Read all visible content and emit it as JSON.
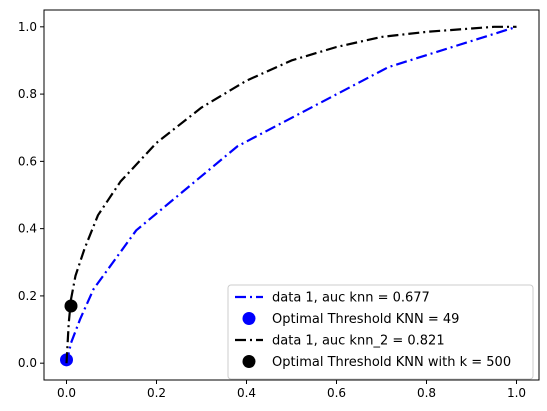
{
  "chart_data": {
    "type": "line",
    "title": "",
    "xlabel": "",
    "ylabel": "",
    "xlim": [
      -0.05,
      1.05
    ],
    "ylim": [
      -0.05,
      1.05
    ],
    "x_ticks": [
      0.0,
      0.2,
      0.4,
      0.6,
      0.8,
      1.0
    ],
    "y_ticks": [
      0.0,
      0.2,
      0.4,
      0.6,
      0.8,
      1.0
    ],
    "x_tick_labels": [
      "0.0",
      "0.2",
      "0.4",
      "0.6",
      "0.8",
      "1.0"
    ],
    "y_tick_labels": [
      "0.0",
      "0.2",
      "0.4",
      "0.6",
      "0.8",
      "1.0"
    ],
    "grid": false,
    "legend_position": "lower-right",
    "series": [
      {
        "name": "data 1, auc knn = 0.677",
        "kind": "line",
        "style": "dashdot",
        "color": "#0000ff",
        "x": [
          0.0,
          0.01,
          0.03,
          0.06,
          0.155,
          0.38,
          0.715,
          1.0
        ],
        "y": [
          0.0,
          0.06,
          0.13,
          0.22,
          0.395,
          0.645,
          0.88,
          1.0
        ]
      },
      {
        "name": "Optimal Threshold KNN = 49",
        "kind": "marker",
        "color": "#0000ff",
        "x": [
          0.0
        ],
        "y": [
          0.01
        ]
      },
      {
        "name": "data 1, auc knn_2 = 0.821",
        "kind": "line",
        "style": "dashdot",
        "color": "#000000",
        "x": [
          0.0,
          0.005,
          0.01,
          0.02,
          0.04,
          0.07,
          0.12,
          0.2,
          0.3,
          0.4,
          0.5,
          0.6,
          0.7,
          0.8,
          0.9,
          0.95,
          1.0
        ],
        "y": [
          0.0,
          0.12,
          0.19,
          0.26,
          0.34,
          0.44,
          0.54,
          0.655,
          0.76,
          0.84,
          0.9,
          0.94,
          0.97,
          0.985,
          0.995,
          1.0,
          1.0
        ]
      },
      {
        "name": "Optimal Threshold KNN with k = 500",
        "kind": "marker",
        "color": "#000000",
        "x": [
          0.01
        ],
        "y": [
          0.17
        ]
      }
    ]
  }
}
